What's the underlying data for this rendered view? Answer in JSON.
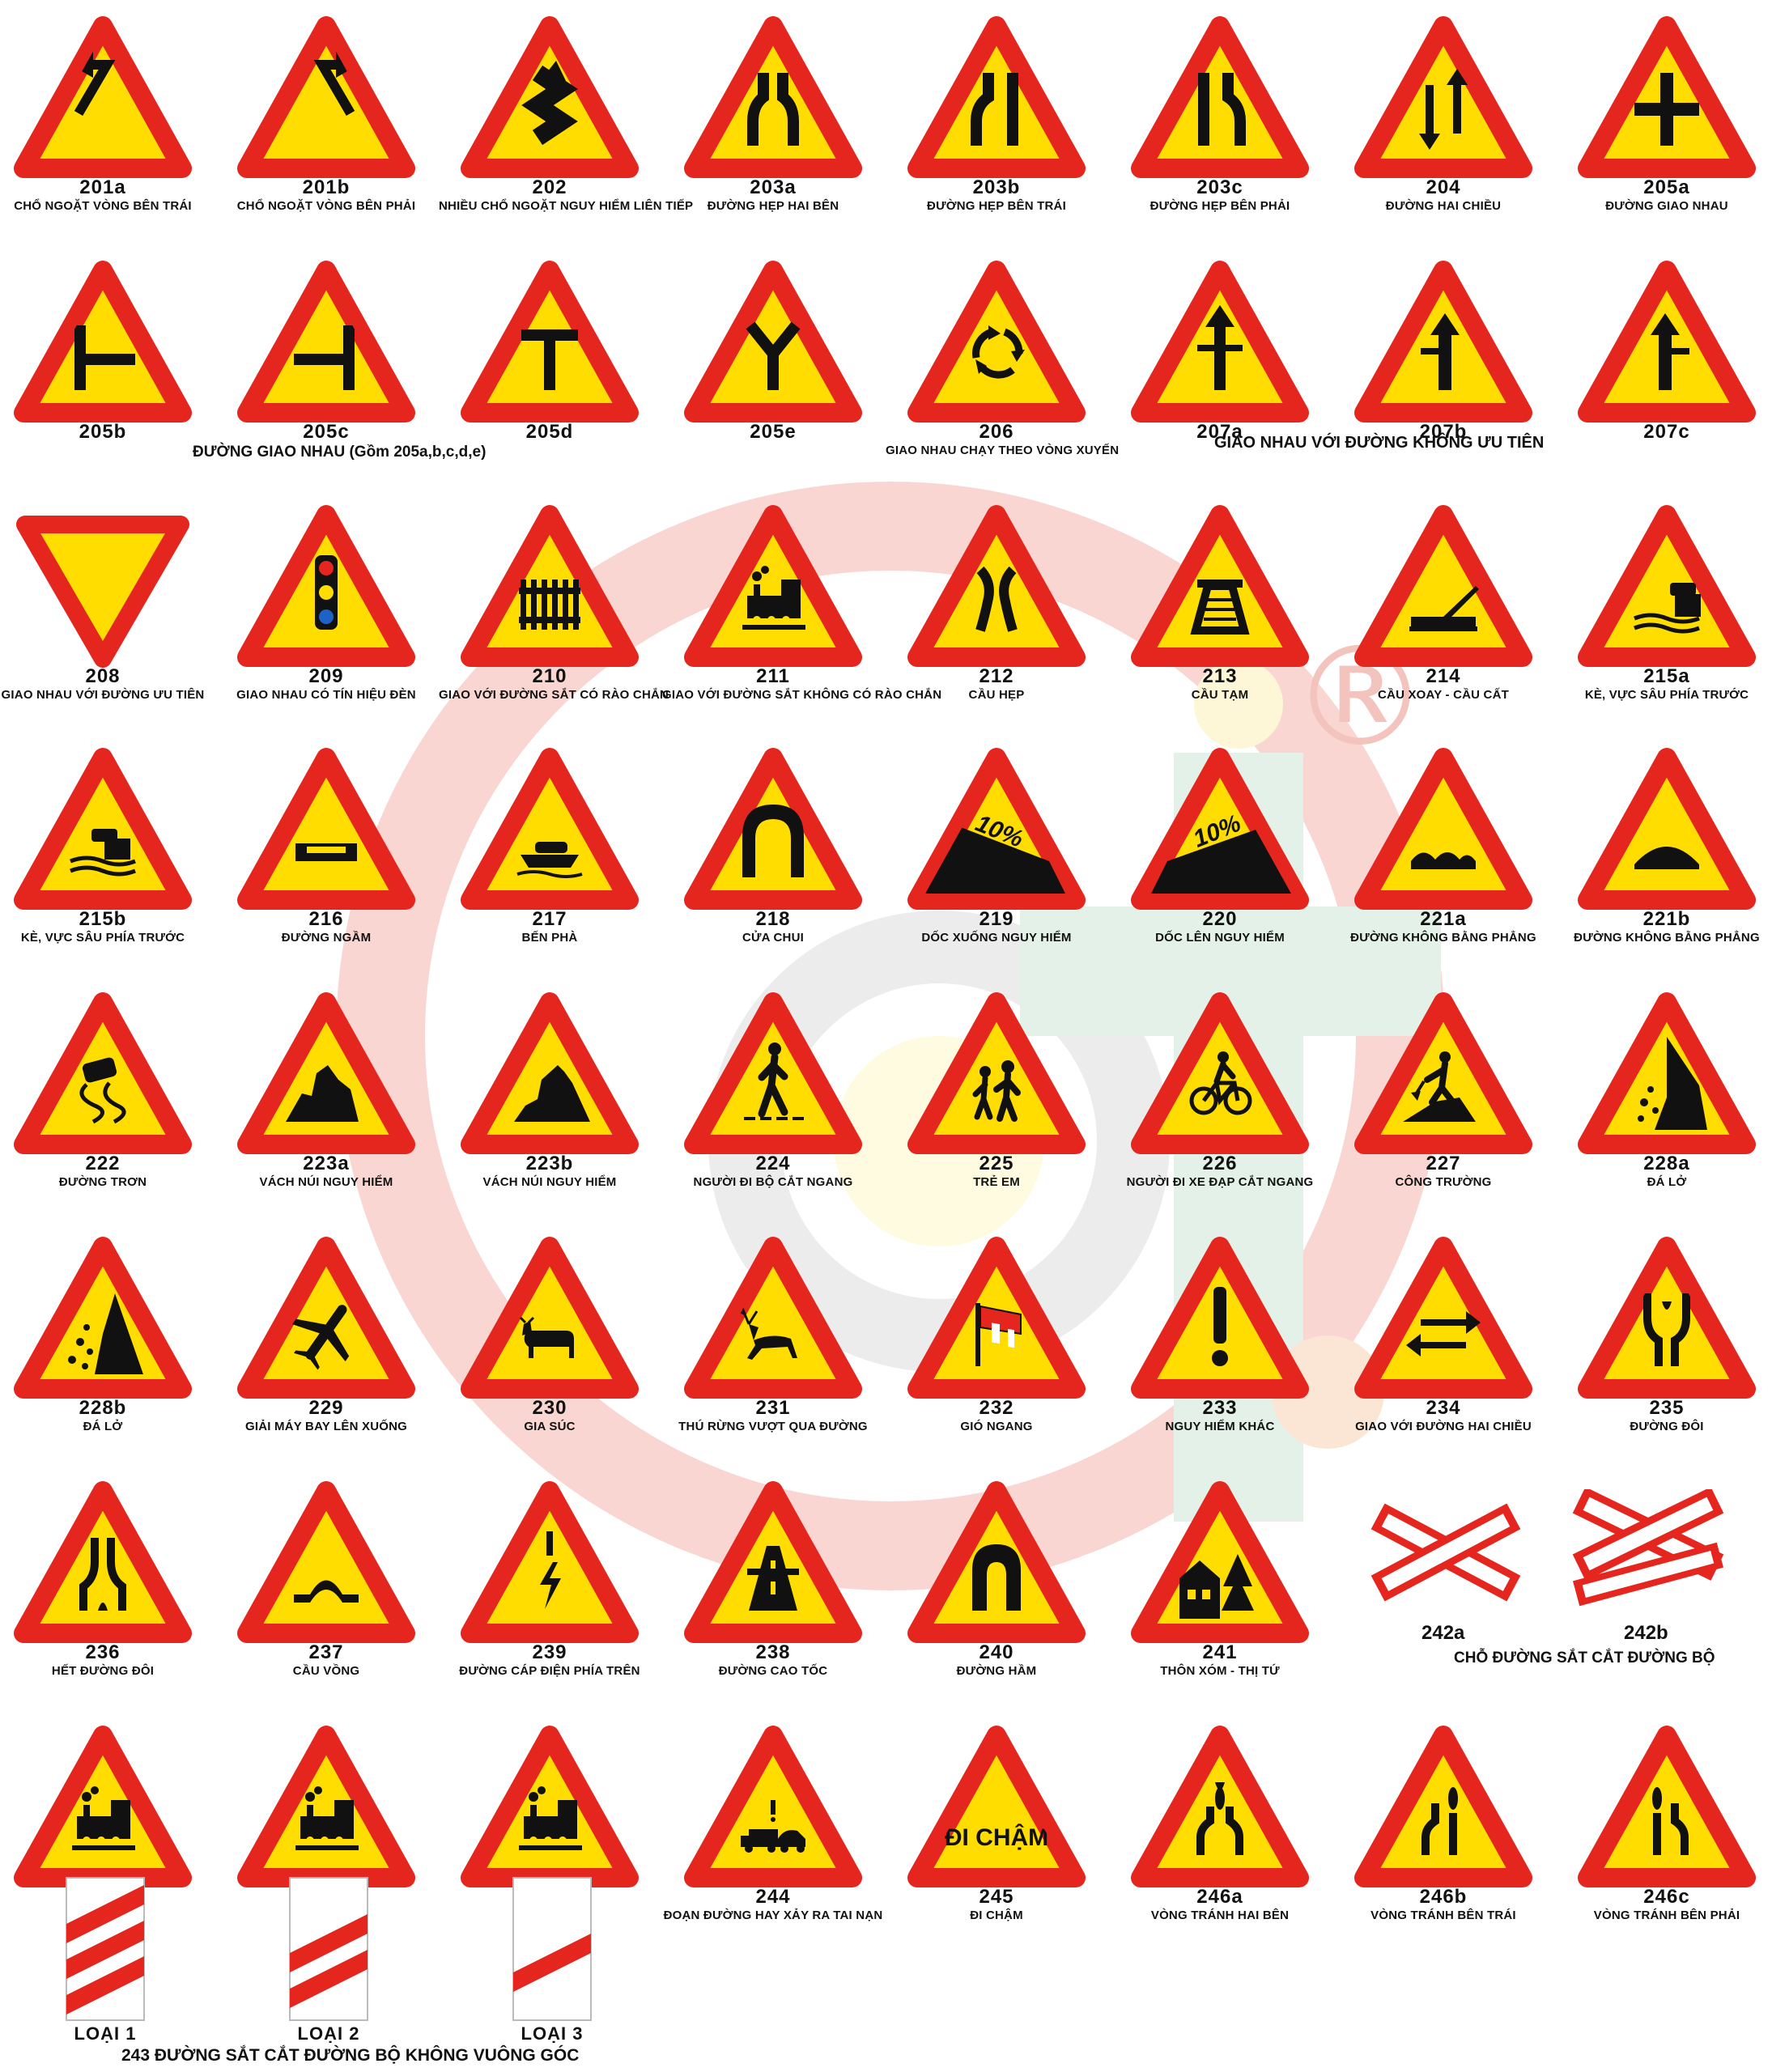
{
  "colors": {
    "border": "#e5261f",
    "fill": "#ffdd00",
    "symbol": "#111111",
    "watermark_red": "#f6c9c4",
    "watermark_green": "#dbeee2",
    "watermark_grey": "#e9e9e9"
  },
  "signs": [
    {
      "code": "201a",
      "name": "CHỔ NGOẶT  VÒNG BÊN TRÁI",
      "icon": "curve-left-icon"
    },
    {
      "code": "201b",
      "name": "CHỔ NGOẶT  VÒNG BÊN PHẢI",
      "icon": "curve-right-icon"
    },
    {
      "code": "202",
      "name": "NHIỀU CHỔ NGOẶT  NGUY HIỂM LIÊN TIẾP",
      "icon": "double-curve-icon"
    },
    {
      "code": "203a",
      "name": "ĐƯỜNG HẸP HAI BÊN",
      "icon": "narrow-both-icon"
    },
    {
      "code": "203b",
      "name": "ĐƯỜNG HẸP BÊN TRÁI",
      "icon": "narrow-left-icon"
    },
    {
      "code": "203c",
      "name": "ĐƯỜNG  HẸP BÊN PHẢI",
      "icon": "narrow-right-icon"
    },
    {
      "code": "204",
      "name": "ĐƯỜNG HAI CHIỀU",
      "icon": "two-way-icon"
    },
    {
      "code": "205a",
      "name": "ĐƯỜNG GIAO NHAU",
      "icon": "crossroads-icon"
    },
    {
      "code": "205b",
      "name": "",
      "icon": "junction-right-icon"
    },
    {
      "code": "205c",
      "name": "",
      "icon": "junction-left-icon"
    },
    {
      "code": "205d",
      "name": "",
      "icon": "t-junction-icon"
    },
    {
      "code": "205e",
      "name": "",
      "icon": "y-junction-icon"
    },
    {
      "code": "206",
      "name": "GIAO NHAU CHẠY THEO VÒNG XUYẾN",
      "icon": "roundabout-icon"
    },
    {
      "code": "207a",
      "name": "",
      "icon": "priority-cross-icon"
    },
    {
      "code": "207b",
      "name": "",
      "icon": "priority-left-icon"
    },
    {
      "code": "207c",
      "name": "",
      "icon": "priority-right-icon"
    },
    {
      "code": "208",
      "name": "GIAO NHAU VỚI ĐƯỜNG  ƯU TIÊN",
      "icon": "yield-icon"
    },
    {
      "code": "209",
      "name": "GIAO NHAU CÓ TÍN HIỆU ĐÈN",
      "icon": "traffic-light-icon"
    },
    {
      "code": "210",
      "name": "GIAO  VỚI ĐƯỜNG SẮT CÓ RÀO CHẮN",
      "icon": "railway-gate-icon"
    },
    {
      "code": "211",
      "name": "GIAO  VỚI ĐƯỜNG SẮT KHÔNG CÓ RÀO CHẮN",
      "icon": "train-icon"
    },
    {
      "code": "212",
      "name": "CẦU HẸP",
      "icon": "narrow-bridge-icon"
    },
    {
      "code": "213",
      "name": "CẦU TẠM",
      "icon": "temporary-bridge-icon"
    },
    {
      "code": "214",
      "name": "CẦU XOAY - CẦU CẤT",
      "icon": "swing-bridge-icon"
    },
    {
      "code": "215a",
      "name": "KÈ, VỰC SÂU PHÍA TRƯỚC",
      "icon": "quay-right-icon"
    },
    {
      "code": "215b",
      "name": "KÈ, VỰC SÂU PHÍA TRƯỚC",
      "icon": "quay-left-icon"
    },
    {
      "code": "216",
      "name": "ĐƯỜNG NGẦM",
      "icon": "ford-icon"
    },
    {
      "code": "217",
      "name": "BẾN PHÀ",
      "icon": "ferry-icon"
    },
    {
      "code": "218",
      "name": "CỬA CHUI",
      "icon": "tunnel-arch-icon"
    },
    {
      "code": "219",
      "name": "DỐC XUỐNG NGUY HIỂM",
      "icon": "steep-descent-icon",
      "slope": "10%"
    },
    {
      "code": "220",
      "name": "DỐC LÊN NGUY HIỂM",
      "icon": "steep-ascent-icon",
      "slope": "10%"
    },
    {
      "code": "221a",
      "name": "ĐƯỜNG KHÔNG BẰNG PHẲNG",
      "icon": "uneven-road-icon"
    },
    {
      "code": "221b",
      "name": "ĐƯỜNG KHÔNG BẰNG PHẲNG",
      "icon": "speed-bump-icon"
    },
    {
      "code": "222",
      "name": "ĐƯỜNG TRƠN",
      "icon": "slippery-road-icon"
    },
    {
      "code": "223a",
      "name": "VÁCH NÚI NGUY HIỂM",
      "icon": "cliff-left-icon"
    },
    {
      "code": "223b",
      "name": "VÁCH NÚI NGUY HIỂM",
      "icon": "cliff-right-icon"
    },
    {
      "code": "224",
      "name": "NGƯỜI ĐI BỘ CẮT NGANG",
      "icon": "pedestrian-icon"
    },
    {
      "code": "225",
      "name": "TRẺ EM",
      "icon": "children-icon"
    },
    {
      "code": "226",
      "name": "NGƯỜI ĐI XE ĐẠP CẮT NGANG",
      "icon": "bicycle-icon"
    },
    {
      "code": "227",
      "name": "CÔNG TRƯỜNG",
      "icon": "roadworks-icon"
    },
    {
      "code": "228a",
      "name": "ĐÁ LỞ",
      "icon": "falling-rocks-right-icon"
    },
    {
      "code": "228b",
      "name": "ĐÁ LỞ",
      "icon": "falling-rocks-left-icon"
    },
    {
      "code": "229",
      "name": "GIẢI MÁY BAY LÊN XUỐNG",
      "icon": "airplane-icon"
    },
    {
      "code": "230",
      "name": "GIA SÚC",
      "icon": "cattle-icon"
    },
    {
      "code": "231",
      "name": "THÚ RỪNG VƯỢT QUA ĐƯỜNG",
      "icon": "deer-icon"
    },
    {
      "code": "232",
      "name": "GIÓ NGANG",
      "icon": "windsock-icon"
    },
    {
      "code": "233",
      "name": "NGUY HIỂM KHÁC",
      "icon": "exclamation-icon"
    },
    {
      "code": "234",
      "name": "GIAO VỚI ĐƯỜNG HAI CHIỀU",
      "icon": "two-way-horizontal-icon"
    },
    {
      "code": "235",
      "name": "ĐƯỜNG ĐÔI",
      "icon": "dual-carriageway-icon"
    },
    {
      "code": "236",
      "name": "HẾT ĐƯỜNG ĐÔI",
      "icon": "end-dual-carriageway-icon"
    },
    {
      "code": "237",
      "name": "CẦU VỒNG",
      "icon": "hump-bridge-icon"
    },
    {
      "code": "239",
      "name": "ĐƯỜNG CÁP ĐIỆN PHÍA TRÊN",
      "icon": "power-line-icon"
    },
    {
      "code": "238",
      "name": "ĐƯỜNG CAO TỐC",
      "icon": "expressway-icon"
    },
    {
      "code": "240",
      "name": "ĐƯỜNG HẦM",
      "icon": "tunnel-icon"
    },
    {
      "code": "241",
      "name": "THÔN XÓM - THỊ TỨ",
      "icon": "village-icon"
    },
    {
      "code": "243",
      "name": "",
      "icon": "train-icon"
    },
    {
      "code": "243",
      "name": "",
      "icon": "train-icon"
    },
    {
      "code": "243",
      "name": "",
      "icon": "train-icon"
    },
    {
      "code": "244",
      "name": "ĐOẠN ĐƯỜNG HAY XẢY RA TAI NẠN",
      "icon": "accident-icon"
    },
    {
      "code": "245",
      "name": "ĐI CHẬM",
      "icon": "go-slow-icon",
      "text": "ĐI CHẬM"
    },
    {
      "code": "246a",
      "name": "VÒNG TRÁNH HAI BÊN",
      "icon": "diversion-both-icon"
    },
    {
      "code": "246b",
      "name": "VÒNG TRÁNH BÊN TRÁI",
      "icon": "diversion-left-icon"
    },
    {
      "code": "246c",
      "name": "VÒNG TRÁNH BÊN PHẢI",
      "icon": "diversion-right-icon"
    }
  ],
  "crosses": [
    {
      "code": "242a",
      "icon": "railway-single-cross-icon"
    },
    {
      "code": "242b",
      "icon": "railway-double-cross-icon"
    }
  ],
  "groups": {
    "g205": "ĐƯỜNG GIAO NHAU (Gồm 205a,b,c,d,e)",
    "g207": "GIAO NHAU VỚI ĐƯỜNG KHÔNG ƯU TIÊN",
    "g242": "CHỖ ĐƯỜNG SẮT CẮT ĐƯỜNG BỘ",
    "g243": "243 ĐƯỜNG SẮT CẮT ĐƯỜNG BỘ KHÔNG VUÔNG GÓC"
  },
  "loai": [
    "LOẠI 1",
    "LOẠI 2",
    "LOẠI 3"
  ],
  "watermark": {
    "mark": "®"
  }
}
